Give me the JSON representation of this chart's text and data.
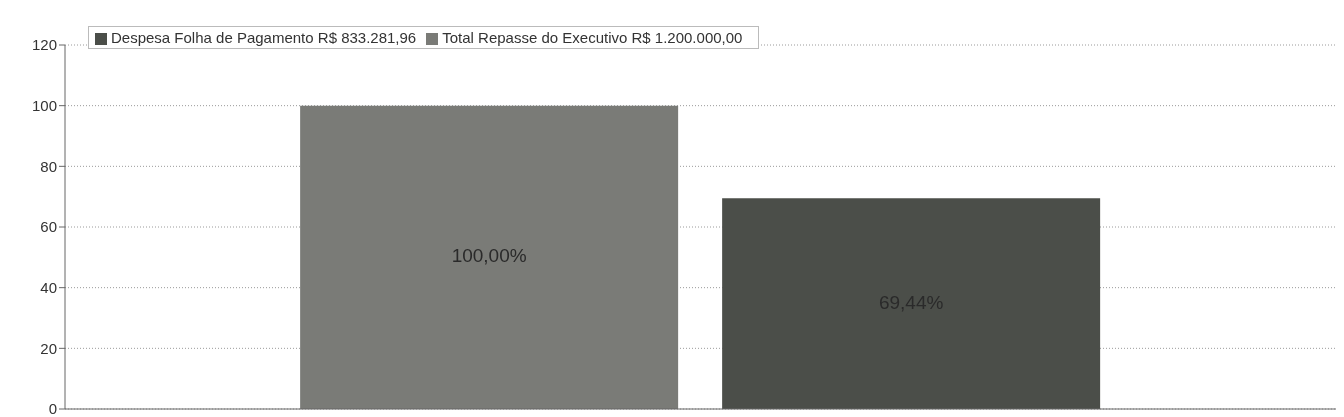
{
  "chart_data": {
    "type": "bar",
    "categories": [
      null
    ],
    "series": [
      {
        "name": "Total Repasse do Executivo R$ 1.200.000,00",
        "color": "#7a7b77",
        "values": [
          100
        ],
        "value_labels": [
          "100,00%"
        ]
      },
      {
        "name": "Despesa Folha de Pagamento R$ 833.281,96",
        "color": "#4b4e49",
        "values": [
          69.44
        ],
        "value_labels": [
          "69,44%"
        ]
      }
    ],
    "ylim": [
      0,
      120
    ],
    "yticks": [
      0,
      20,
      40,
      60,
      80,
      100,
      120
    ],
    "grid": "y",
    "legend": "top left"
  }
}
